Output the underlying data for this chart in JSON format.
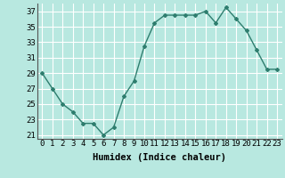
{
  "x": [
    0,
    1,
    2,
    3,
    4,
    5,
    6,
    7,
    8,
    9,
    10,
    11,
    12,
    13,
    14,
    15,
    16,
    17,
    18,
    19,
    20,
    21,
    22,
    23
  ],
  "y": [
    29,
    27,
    25,
    24,
    22.5,
    22.5,
    21,
    22,
    26,
    28,
    32.5,
    35.5,
    36.5,
    36.5,
    36.5,
    36.5,
    37,
    35.5,
    37.5,
    36,
    34.5,
    32,
    29.5,
    29.5
  ],
  "line_color": "#2e7d6e",
  "marker": "D",
  "marker_size": 2,
  "bg_color": "#b8e8e0",
  "grid_color": "#d8f0ec",
  "xlabel": "Humidex (Indice chaleur)",
  "ylim": [
    20.5,
    38
  ],
  "xlim": [
    -0.5,
    23.5
  ],
  "yticks": [
    21,
    23,
    25,
    27,
    29,
    31,
    33,
    35,
    37
  ],
  "xticks": [
    0,
    1,
    2,
    3,
    4,
    5,
    6,
    7,
    8,
    9,
    10,
    11,
    12,
    13,
    14,
    15,
    16,
    17,
    18,
    19,
    20,
    21,
    22,
    23
  ],
  "xtick_labels": [
    "0",
    "1",
    "2",
    "3",
    "4",
    "5",
    "6",
    "7",
    "8",
    "9",
    "10",
    "11",
    "12",
    "13",
    "14",
    "15",
    "16",
    "17",
    "18",
    "19",
    "20",
    "21",
    "22",
    "23"
  ],
  "xlabel_fontsize": 7.5,
  "tick_fontsize": 6.5,
  "grid_major_color": "#ffffff",
  "grid_minor_color": "#d0ece8"
}
